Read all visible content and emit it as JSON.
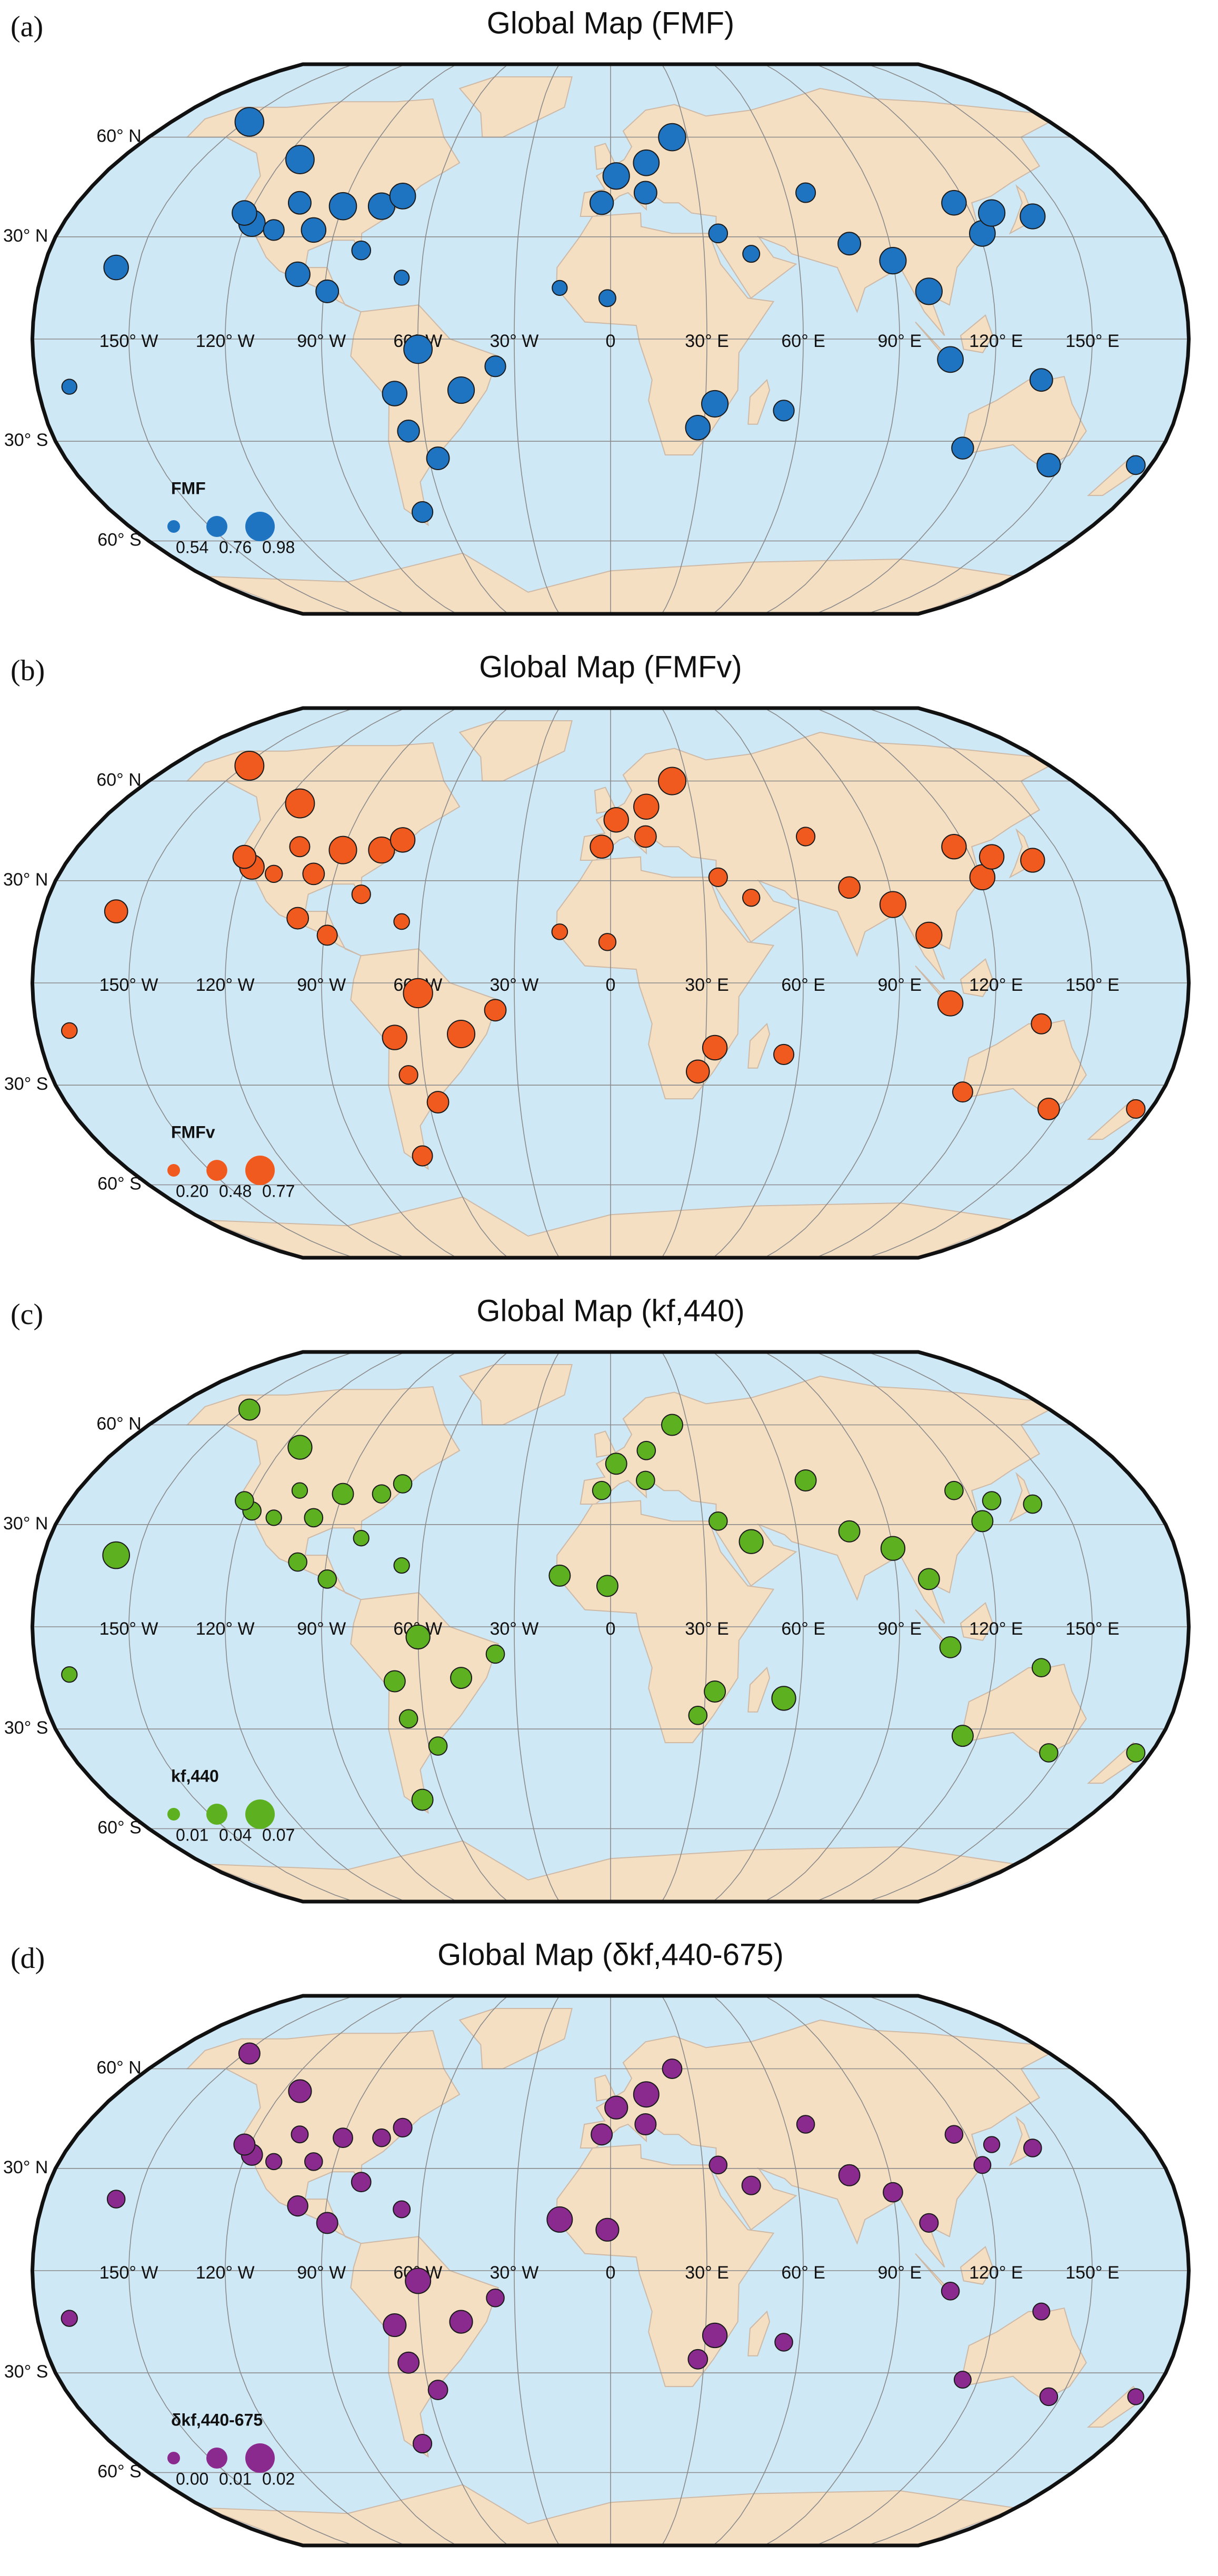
{
  "chart_data": [
    {
      "type": "bubble_map",
      "panel_label": "(a)",
      "title": "Global Map (FMF)",
      "legend_title": "FMF",
      "color": "#1f74c2",
      "lon_ticks": [
        {
          "value": -150,
          "label": "150° W"
        },
        {
          "value": -120,
          "label": "120° W"
        },
        {
          "value": -90,
          "label": "90° W"
        },
        {
          "value": -60,
          "label": "60° W"
        },
        {
          "value": -30,
          "label": "30° W"
        },
        0,
        {
          "value": 30,
          "label": "30° E"
        },
        {
          "value": 60,
          "label": "60° E"
        },
        {
          "value": 90,
          "label": "90° E"
        },
        {
          "value": 120,
          "label": "120° E"
        },
        {
          "value": 150,
          "label": "150° E"
        }
      ],
      "lat_ticks": [
        {
          "value": 60,
          "label": "60° N"
        },
        {
          "value": 30,
          "label": "30° N"
        },
        {
          "value": 0,
          "label": null
        },
        {
          "value": -30,
          "label": "30° S"
        },
        {
          "value": -60,
          "label": "60° S"
        }
      ],
      "size_legend": [
        0.54,
        0.76,
        0.98
      ],
      "sites": {
        "lon": [
          -118,
          -122,
          -105,
          -90,
          -77,
          -71,
          -110,
          -97,
          -114,
          -80,
          -89,
          -99,
          -66,
          -65,
          -60,
          -47,
          -57,
          -68,
          -157,
          2,
          13,
          -3,
          24,
          12,
          35,
          -16,
          -1,
          28,
          33,
          55,
          77,
          90,
          116,
          121,
          127,
          140,
          100,
          106,
          135,
          146,
          115,
          175,
          -170,
          -148,
          67,
          45,
          -68,
          -36
        ],
        "lat": [
          34,
          37,
          40,
          39,
          39,
          42,
          32,
          32,
          53,
          26,
          14,
          19,
          18,
          -27,
          -3,
          -15,
          -35,
          -51,
          21,
          48,
          52,
          40,
          60,
          43,
          31,
          15,
          12,
          -26,
          -19,
          -21,
          28,
          23,
          40,
          31,
          37,
          36,
          14,
          -6,
          -12,
          -37,
          -32,
          -37,
          -14,
          65,
          43,
          25,
          -16,
          -8
        ],
        "values": [
          0.9,
          0.85,
          0.8,
          0.92,
          0.9,
          0.88,
          0.75,
          0.85,
          0.95,
          0.7,
          0.8,
          0.85,
          0.6,
          0.78,
          0.95,
          0.9,
          0.8,
          0.75,
          0.85,
          0.9,
          0.88,
          0.82,
          0.92,
          0.8,
          0.7,
          0.6,
          0.65,
          0.85,
          0.9,
          0.75,
          0.8,
          0.9,
          0.85,
          0.88,
          0.9,
          0.86,
          0.9,
          0.88,
          0.8,
          0.82,
          0.78,
          0.7,
          0.6,
          0.96,
          0.72,
          0.65,
          0.85,
          0.75
        ]
      }
    },
    {
      "type": "bubble_map",
      "panel_label": "(b)",
      "title": "Global Map (FMFv)",
      "legend_title": "FMFv",
      "color": "#f15a1e",
      "lon_ticks": [
        {
          "value": -150,
          "label": "150° W"
        },
        {
          "value": -120,
          "label": "120° W"
        },
        {
          "value": -90,
          "label": "90° W"
        },
        {
          "value": -60,
          "label": "60° W"
        },
        {
          "value": -30,
          "label": "30° W"
        },
        0,
        {
          "value": 30,
          "label": "30° E"
        },
        {
          "value": 60,
          "label": "60° E"
        },
        {
          "value": 90,
          "label": "90° E"
        },
        {
          "value": 120,
          "label": "120° E"
        },
        {
          "value": 150,
          "label": "150° E"
        }
      ],
      "lat_ticks": [
        {
          "value": 60,
          "label": "60° N"
        },
        {
          "value": 30,
          "label": "30° N"
        },
        {
          "value": 0,
          "label": null
        },
        {
          "value": -30,
          "label": "30° S"
        },
        {
          "value": -60,
          "label": "60° S"
        }
      ],
      "size_legend": [
        {
          "value": 0.2,
          "label": "0.20"
        },
        0.48,
        0.77
      ],
      "sites": {
        "lon": [
          -118,
          -122,
          -105,
          -90,
          -77,
          -71,
          -110,
          -97,
          -114,
          -80,
          -89,
          -99,
          -66,
          -65,
          -60,
          -47,
          -57,
          -68,
          -157,
          2,
          13,
          -3,
          24,
          12,
          35,
          -16,
          -1,
          28,
          33,
          55,
          77,
          90,
          116,
          121,
          127,
          140,
          100,
          106,
          135,
          146,
          115,
          175,
          -170,
          -148,
          67,
          45,
          -68,
          -36
        ],
        "lat": [
          34,
          37,
          40,
          39,
          39,
          42,
          32,
          32,
          53,
          26,
          14,
          19,
          18,
          -27,
          -3,
          -15,
          -35,
          -51,
          21,
          48,
          52,
          40,
          60,
          43,
          31,
          15,
          12,
          -26,
          -19,
          -21,
          28,
          23,
          40,
          31,
          37,
          36,
          14,
          -6,
          -12,
          -37,
          -32,
          -37,
          -14,
          65,
          43,
          25,
          -16,
          -8
        ],
        "values": [
          0.6,
          0.55,
          0.45,
          0.7,
          0.65,
          0.6,
          0.35,
          0.5,
          0.75,
          0.4,
          0.45,
          0.5,
          0.3,
          0.4,
          0.76,
          0.7,
          0.5,
          0.45,
          0.55,
          0.6,
          0.62,
          0.55,
          0.7,
          0.5,
          0.4,
          0.3,
          0.35,
          0.55,
          0.6,
          0.45,
          0.5,
          0.65,
          0.6,
          0.62,
          0.6,
          0.58,
          0.65,
          0.62,
          0.45,
          0.5,
          0.45,
          0.4,
          0.3,
          0.75,
          0.4,
          0.35,
          0.6,
          0.5
        ]
      }
    },
    {
      "type": "bubble_map",
      "panel_label": "(c)",
      "title": "Global Map (kf,440)",
      "legend_title": "kf,440",
      "color": "#5db01f",
      "lon_ticks": [
        {
          "value": -150,
          "label": "150° W"
        },
        {
          "value": -120,
          "label": "120° W"
        },
        {
          "value": -90,
          "label": "90° W"
        },
        {
          "value": -60,
          "label": "60° W"
        },
        {
          "value": -30,
          "label": "30° W"
        },
        0,
        {
          "value": 30,
          "label": "30° E"
        },
        {
          "value": 60,
          "label": "60° E"
        },
        {
          "value": 90,
          "label": "90° E"
        },
        {
          "value": 120,
          "label": "120° E"
        },
        {
          "value": 150,
          "label": "150° E"
        }
      ],
      "lat_ticks": [
        {
          "value": 60,
          "label": "60° N"
        },
        {
          "value": 30,
          "label": "30° N"
        },
        {
          "value": 0,
          "label": null
        },
        {
          "value": -30,
          "label": "30° S"
        },
        {
          "value": -60,
          "label": "60° S"
        }
      ],
      "size_legend": [
        0.01,
        0.04,
        0.07
      ],
      "sites": {
        "lon": [
          -118,
          -122,
          -105,
          -90,
          -77,
          -71,
          -110,
          -97,
          -114,
          -80,
          -89,
          -99,
          -66,
          -65,
          -60,
          -47,
          -57,
          -68,
          -157,
          2,
          13,
          -3,
          24,
          12,
          35,
          -16,
          -1,
          28,
          33,
          55,
          77,
          90,
          116,
          121,
          127,
          140,
          100,
          106,
          135,
          146,
          115,
          175,
          -170,
          -148,
          67,
          45,
          -68,
          -36
        ],
        "lat": [
          34,
          37,
          40,
          39,
          39,
          42,
          32,
          32,
          53,
          26,
          14,
          19,
          18,
          -27,
          -3,
          -15,
          -35,
          -51,
          21,
          48,
          52,
          40,
          60,
          43,
          31,
          15,
          12,
          -26,
          -19,
          -21,
          28,
          23,
          40,
          31,
          37,
          36,
          14,
          -6,
          -12,
          -37,
          -32,
          -37,
          -14,
          65,
          43,
          25,
          -16,
          -8
        ],
        "values": [
          0.03,
          0.03,
          0.02,
          0.04,
          0.03,
          0.03,
          0.02,
          0.03,
          0.05,
          0.02,
          0.03,
          0.03,
          0.02,
          0.03,
          0.05,
          0.04,
          0.03,
          0.04,
          0.06,
          0.04,
          0.03,
          0.03,
          0.04,
          0.03,
          0.03,
          0.04,
          0.04,
          0.03,
          0.04,
          0.05,
          0.04,
          0.05,
          0.03,
          0.04,
          0.03,
          0.03,
          0.04,
          0.04,
          0.03,
          0.03,
          0.04,
          0.03,
          0.02,
          0.04,
          0.04,
          0.05,
          0.04,
          0.03
        ]
      }
    },
    {
      "type": "bubble_map",
      "panel_label": "(d)",
      "title": "Global Map (δkf,440-675)",
      "legend_title": "δkf,440-675",
      "color": "#8a2a8e",
      "lon_ticks": [
        {
          "value": -150,
          "label": "150° W"
        },
        {
          "value": -120,
          "label": "120° W"
        },
        {
          "value": -90,
          "label": "90° W"
        },
        {
          "value": -60,
          "label": "60° W"
        },
        {
          "value": -30,
          "label": "30° W"
        },
        0,
        {
          "value": 30,
          "label": "30° E"
        },
        {
          "value": 60,
          "label": "60° E"
        },
        {
          "value": 90,
          "label": "90° E"
        },
        {
          "value": 120,
          "label": "120° E"
        },
        {
          "value": 150,
          "label": "150° E"
        }
      ],
      "lat_ticks": [
        {
          "value": 60,
          "label": "60° N"
        },
        {
          "value": 30,
          "label": "30° N"
        },
        {
          "value": 0,
          "label": null
        },
        {
          "value": -30,
          "label": "30° S"
        },
        {
          "value": -60,
          "label": "60° S"
        }
      ],
      "size_legend": [
        {
          "value": 0,
          "label": "0.00"
        },
        0.01,
        0.02
      ],
      "sites": {
        "lon": [
          -118,
          -122,
          -105,
          -90,
          -77,
          -71,
          -110,
          -97,
          -114,
          -80,
          -89,
          -99,
          -66,
          -65,
          -60,
          -47,
          -57,
          -68,
          -157,
          2,
          13,
          -3,
          24,
          12,
          35,
          -16,
          -1,
          28,
          33,
          55,
          77,
          90,
          116,
          121,
          127,
          140,
          100,
          106,
          135,
          146,
          115,
          175,
          -170,
          -148,
          67,
          45,
          -68,
          -36
        ],
        "lat": [
          34,
          37,
          40,
          39,
          39,
          42,
          32,
          32,
          53,
          26,
          14,
          19,
          18,
          -27,
          -3,
          -15,
          -35,
          -51,
          21,
          48,
          52,
          40,
          60,
          43,
          31,
          15,
          12,
          -26,
          -19,
          -21,
          28,
          23,
          40,
          31,
          37,
          36,
          14,
          -6,
          -12,
          -37,
          -32,
          -37,
          -14,
          65,
          43,
          25,
          -16,
          -8
        ],
        "values": [
          0.01,
          0.01,
          0.005,
          0.008,
          0.006,
          0.007,
          0.004,
          0.006,
          0.012,
          0.008,
          0.01,
          0.009,
          0.005,
          0.01,
          0.015,
          0.012,
          0.008,
          0.007,
          0.006,
          0.012,
          0.015,
          0.01,
          0.008,
          0.01,
          0.006,
          0.015,
          0.012,
          0.008,
          0.014,
          0.006,
          0.01,
          0.008,
          0.006,
          0.005,
          0.004,
          0.006,
          0.007,
          0.006,
          0.005,
          0.006,
          0.005,
          0.004,
          0.004,
          0.01,
          0.006,
          0.007,
          0.012,
          0.006
        ]
      }
    }
  ]
}
